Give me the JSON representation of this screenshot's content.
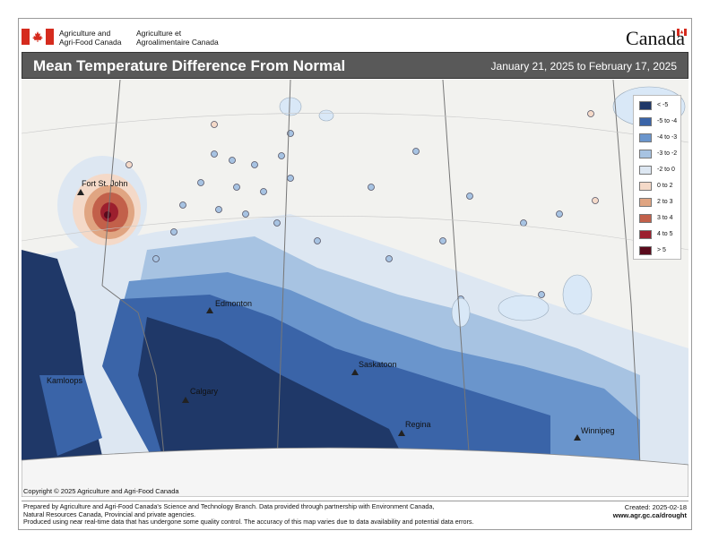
{
  "header": {
    "department_en_line1": "Agriculture and",
    "department_en_line2": "Agri-Food Canada",
    "department_fr_line1": "Agriculture et",
    "department_fr_line2": "Agroalimentaire Canada",
    "wordmark": "Canada"
  },
  "title": "Mean Temperature Difference From Normal",
  "period": "January 21, 2025 to February 17, 2025",
  "legend": [
    {
      "label": "< -5",
      "color": "#1f3868"
    },
    {
      "label": "-5 to -4",
      "color": "#3a64a8"
    },
    {
      "label": "-4 to -3",
      "color": "#6a95cc"
    },
    {
      "label": "-3 to -2",
      "color": "#a7c3e2"
    },
    {
      "label": "-2 to 0",
      "color": "#dde7f2"
    },
    {
      "label": "0 to 2",
      "color": "#f4d9c8"
    },
    {
      "label": "2 to 3",
      "color": "#e0a582"
    },
    {
      "label": "3 to 4",
      "color": "#c2604a"
    },
    {
      "label": "4 to 5",
      "color": "#9c1f2e"
    },
    {
      "label": "> 5",
      "color": "#5a0a1c"
    }
  ],
  "cities": [
    {
      "name": "Fort St. John"
    },
    {
      "name": "Edmonton"
    },
    {
      "name": "Kamloops"
    },
    {
      "name": "Calgary"
    },
    {
      "name": "Saskatoon"
    },
    {
      "name": "Regina"
    },
    {
      "name": "Winnipeg"
    }
  ],
  "copyright": "Copyright © 2025 Agriculture and Agri-Food Canada",
  "footer": {
    "line1": "Prepared by Agriculture and Agri-Food Canada's Science and Technology Branch. Data provided through partnership with Environment Canada,",
    "line2": "Natural Resources Canada, Provincial and private agencies.",
    "line3": "Produced using near real-time data that has undergone some quality control. The accuracy of this map varies due to data availability and potential data errors.",
    "created": "Created: 2025-02-18",
    "url": "www.agr.gc.ca/drought"
  }
}
